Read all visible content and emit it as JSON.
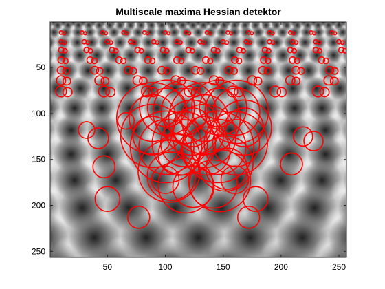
{
  "title": "Multiscale maxima Hessian detektor",
  "axes": {
    "xlim": [
      0.5,
      256.5
    ],
    "ylim": [
      0.5,
      256.5
    ],
    "y_direction": "reverse",
    "x_ticks": [
      50,
      100,
      150,
      200,
      250
    ],
    "y_ticks": [
      50,
      100,
      150,
      200,
      250
    ]
  },
  "colors": {
    "marker": "#ff0000",
    "frame": "#262626"
  },
  "image_background": {
    "type": "grayscale-pattern",
    "description_kind": "blob-lattice"
  }
}
